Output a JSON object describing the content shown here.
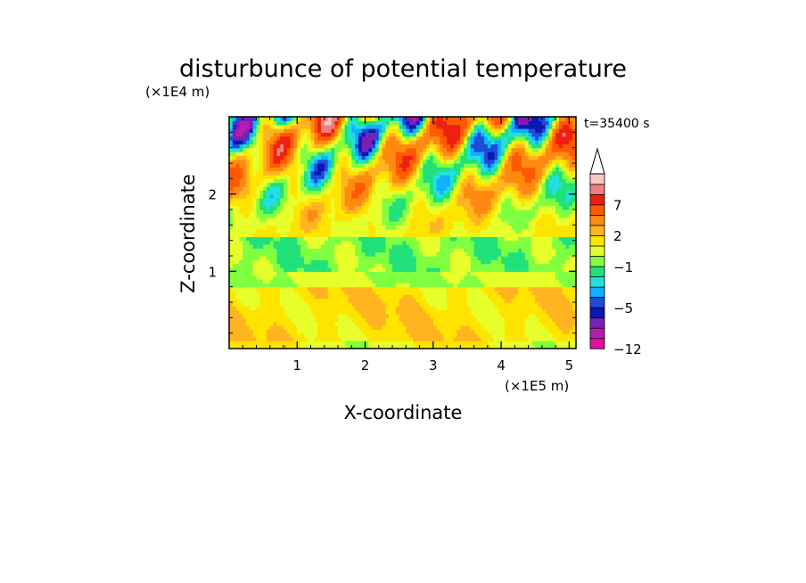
{
  "chart_data": {
    "type": "heatmap",
    "title": "disturbunce of potential temperature",
    "xlabel": "X-coordinate",
    "ylabel": "Z-coordinate",
    "x_unit": "(×1E5 m)",
    "y_unit": "(×1E4 m)",
    "time_label": "t=35400 s",
    "xlim": [
      0,
      5.1
    ],
    "ylim": [
      0,
      3.0
    ],
    "x_ticks": [
      1,
      2,
      3,
      4,
      5
    ],
    "y_ticks": [
      1,
      2
    ],
    "colorbar": {
      "tick_labels": [
        "7",
        "2",
        "−1",
        "−5",
        "−12"
      ],
      "tick_values": [
        7,
        2,
        -1,
        -5,
        -12
      ],
      "levels": [
        -12,
        -10,
        -8,
        -6,
        -5,
        -4,
        -3,
        -2,
        -1,
        0,
        1,
        2,
        3,
        5,
        7,
        9,
        11
      ],
      "colors": [
        "#e0109e",
        "#b81ab0",
        "#7a1fb8",
        "#0b18b0",
        "#1f4bd8",
        "#10b0ff",
        "#22e0e0",
        "#22e07a",
        "#80ff40",
        "#e6ff2a",
        "#ffe400",
        "#ffb420",
        "#ff8a10",
        "#ff5a00",
        "#ee2010",
        "#f08080",
        "#f8c8c8"
      ],
      "extend": "max"
    }
  }
}
